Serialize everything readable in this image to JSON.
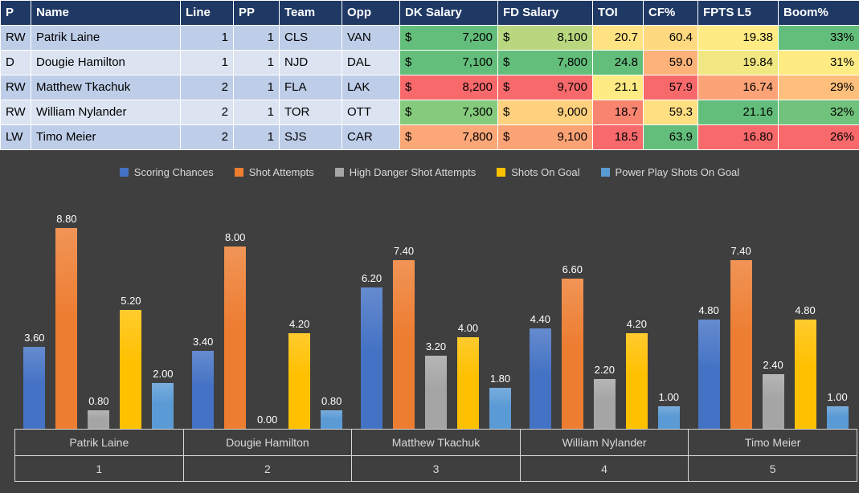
{
  "table": {
    "header_bg": "#1F3864",
    "header_color": "#FFFFFF",
    "columns": [
      {
        "key": "pos",
        "label": "P"
      },
      {
        "key": "name",
        "label": "Name"
      },
      {
        "key": "line",
        "label": "Line"
      },
      {
        "key": "pp",
        "label": "PP"
      },
      {
        "key": "team",
        "label": "Team"
      },
      {
        "key": "opp",
        "label": "Opp"
      },
      {
        "key": "dk",
        "label": "DK Salary"
      },
      {
        "key": "fd",
        "label": "FD Salary"
      },
      {
        "key": "toi",
        "label": "TOI"
      },
      {
        "key": "cf",
        "label": "CF%"
      },
      {
        "key": "fpts",
        "label": "FPTS L5"
      },
      {
        "key": "boom",
        "label": "Boom%"
      }
    ],
    "rows": [
      {
        "pos": "RW",
        "name": "Patrik Laine",
        "line": "1",
        "pp": "1",
        "team": "CLS",
        "opp": "VAN",
        "dk": "7,200",
        "fd": "8,100",
        "toi": "20.7",
        "cf": "60.4",
        "fpts": "19.38",
        "boom": "33%",
        "row_bg": "#BECDE8",
        "colors": {
          "dk": "#63BE7B",
          "fd": "#B8D77F",
          "toi": "#FFE383",
          "cf": "#FFD97F",
          "fpts": "#FFEB84",
          "boom": "#63BE7B"
        }
      },
      {
        "pos": "D",
        "name": "Dougie Hamilton",
        "line": "1",
        "pp": "1",
        "team": "NJD",
        "opp": "DAL",
        "dk": "7,100",
        "fd": "7,800",
        "toi": "24.8",
        "cf": "59.0",
        "fpts": "19.84",
        "boom": "31%",
        "row_bg": "#DCE4F2",
        "colors": {
          "dk": "#63BE7B",
          "fd": "#63BE7B",
          "toi": "#63BE7B",
          "cf": "#FCB279",
          "fpts": "#F2E883",
          "boom": "#FFEB84"
        }
      },
      {
        "pos": "RW",
        "name": "Matthew Tkachuk",
        "line": "2",
        "pp": "1",
        "team": "FLA",
        "opp": "LAK",
        "dk": "8,200",
        "fd": "9,700",
        "toi": "21.1",
        "cf": "57.9",
        "fpts": "16.74",
        "boom": "29%",
        "row_bg": "#BECDE8",
        "colors": {
          "dk": "#F8696B",
          "fd": "#F8696B",
          "toi": "#FFEB84",
          "cf": "#F8696B",
          "fpts": "#FCA377",
          "boom": "#FDBF7B"
        }
      },
      {
        "pos": "RW",
        "name": "William Nylander",
        "line": "2",
        "pp": "1",
        "team": "TOR",
        "opp": "OTT",
        "dk": "7,300",
        "fd": "9,000",
        "toi": "18.7",
        "cf": "59.3",
        "fpts": "21.16",
        "boom": "32%",
        "row_bg": "#DCE4F2",
        "colors": {
          "dk": "#85CA7D",
          "fd": "#FFD17E",
          "toi": "#F98570",
          "cf": "#FFDF82",
          "fpts": "#63BE7B",
          "boom": "#70C27C"
        }
      },
      {
        "pos": "LW",
        "name": "Timo Meier",
        "line": "2",
        "pp": "1",
        "team": "SJS",
        "opp": "CAR",
        "dk": "7,800",
        "fd": "9,100",
        "toi": "18.5",
        "cf": "63.9",
        "fpts": "16.80",
        "boom": "26%",
        "row_bg": "#BECDE8",
        "colors": {
          "dk": "#FBA777",
          "fd": "#FCA376",
          "toi": "#F8696B",
          "cf": "#63BE7B",
          "fpts": "#F8696B",
          "boom": "#F8696B"
        }
      }
    ]
  },
  "chart_data": {
    "type": "bar",
    "title": "",
    "background": "#3F3F3F",
    "grid": false,
    "legend_position": "top",
    "label_color": "#FFFFFF",
    "axis_color": "#D9D9D9",
    "data_label_decimals": 2,
    "ylim": [
      0,
      9.2
    ],
    "categories": [
      "Patrik Laine",
      "Dougie Hamilton",
      "Matthew Tkachuk",
      "William Nylander",
      "Timo Meier"
    ],
    "category_numbers": [
      "1",
      "2",
      "3",
      "4",
      "5"
    ],
    "series": [
      {
        "name": "Scoring Chances",
        "color": "#4472C4",
        "values": [
          3.6,
          3.4,
          6.2,
          4.4,
          4.8
        ]
      },
      {
        "name": "Shot Attempts",
        "color": "#ED7D31",
        "values": [
          8.8,
          8.0,
          7.4,
          6.6,
          7.4
        ]
      },
      {
        "name": "High Danger Shot Attempts",
        "color": "#A5A5A5",
        "values": [
          0.8,
          0.0,
          3.2,
          2.2,
          2.4
        ]
      },
      {
        "name": "Shots On Goal",
        "color": "#FFC000",
        "values": [
          5.2,
          4.2,
          4.0,
          4.2,
          4.8
        ]
      },
      {
        "name": "Power Play Shots On Goal",
        "color": "#5B9BD5",
        "values": [
          2.0,
          0.8,
          1.8,
          1.0,
          1.0
        ]
      }
    ]
  }
}
